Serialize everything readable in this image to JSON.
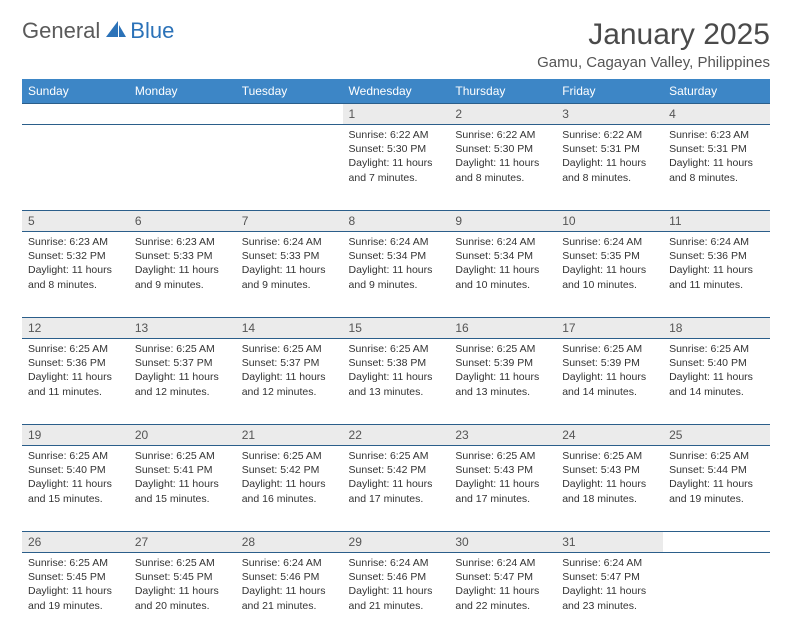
{
  "logo": {
    "part1": "General",
    "part2": "Blue"
  },
  "title": "January 2025",
  "location": "Gamu, Cagayan Valley, Philippines",
  "colors": {
    "header_bg": "#3d86c6",
    "header_fg": "#ffffff",
    "daynum_bg": "#ebebeb",
    "rule": "#2b5e8a",
    "logo_gray": "#5a5a5a",
    "logo_blue": "#2b72b8"
  },
  "day_headers": [
    "Sunday",
    "Monday",
    "Tuesday",
    "Wednesday",
    "Thursday",
    "Friday",
    "Saturday"
  ],
  "weeks": [
    [
      {
        "n": "",
        "sr": "",
        "ss": "",
        "dl": ""
      },
      {
        "n": "",
        "sr": "",
        "ss": "",
        "dl": ""
      },
      {
        "n": "",
        "sr": "",
        "ss": "",
        "dl": ""
      },
      {
        "n": "1",
        "sr": "6:22 AM",
        "ss": "5:30 PM",
        "dl": "11 hours and 7 minutes."
      },
      {
        "n": "2",
        "sr": "6:22 AM",
        "ss": "5:30 PM",
        "dl": "11 hours and 8 minutes."
      },
      {
        "n": "3",
        "sr": "6:22 AM",
        "ss": "5:31 PM",
        "dl": "11 hours and 8 minutes."
      },
      {
        "n": "4",
        "sr": "6:23 AM",
        "ss": "5:31 PM",
        "dl": "11 hours and 8 minutes."
      }
    ],
    [
      {
        "n": "5",
        "sr": "6:23 AM",
        "ss": "5:32 PM",
        "dl": "11 hours and 8 minutes."
      },
      {
        "n": "6",
        "sr": "6:23 AM",
        "ss": "5:33 PM",
        "dl": "11 hours and 9 minutes."
      },
      {
        "n": "7",
        "sr": "6:24 AM",
        "ss": "5:33 PM",
        "dl": "11 hours and 9 minutes."
      },
      {
        "n": "8",
        "sr": "6:24 AM",
        "ss": "5:34 PM",
        "dl": "11 hours and 9 minutes."
      },
      {
        "n": "9",
        "sr": "6:24 AM",
        "ss": "5:34 PM",
        "dl": "11 hours and 10 minutes."
      },
      {
        "n": "10",
        "sr": "6:24 AM",
        "ss": "5:35 PM",
        "dl": "11 hours and 10 minutes."
      },
      {
        "n": "11",
        "sr": "6:24 AM",
        "ss": "5:36 PM",
        "dl": "11 hours and 11 minutes."
      }
    ],
    [
      {
        "n": "12",
        "sr": "6:25 AM",
        "ss": "5:36 PM",
        "dl": "11 hours and 11 minutes."
      },
      {
        "n": "13",
        "sr": "6:25 AM",
        "ss": "5:37 PM",
        "dl": "11 hours and 12 minutes."
      },
      {
        "n": "14",
        "sr": "6:25 AM",
        "ss": "5:37 PM",
        "dl": "11 hours and 12 minutes."
      },
      {
        "n": "15",
        "sr": "6:25 AM",
        "ss": "5:38 PM",
        "dl": "11 hours and 13 minutes."
      },
      {
        "n": "16",
        "sr": "6:25 AM",
        "ss": "5:39 PM",
        "dl": "11 hours and 13 minutes."
      },
      {
        "n": "17",
        "sr": "6:25 AM",
        "ss": "5:39 PM",
        "dl": "11 hours and 14 minutes."
      },
      {
        "n": "18",
        "sr": "6:25 AM",
        "ss": "5:40 PM",
        "dl": "11 hours and 14 minutes."
      }
    ],
    [
      {
        "n": "19",
        "sr": "6:25 AM",
        "ss": "5:40 PM",
        "dl": "11 hours and 15 minutes."
      },
      {
        "n": "20",
        "sr": "6:25 AM",
        "ss": "5:41 PM",
        "dl": "11 hours and 15 minutes."
      },
      {
        "n": "21",
        "sr": "6:25 AM",
        "ss": "5:42 PM",
        "dl": "11 hours and 16 minutes."
      },
      {
        "n": "22",
        "sr": "6:25 AM",
        "ss": "5:42 PM",
        "dl": "11 hours and 17 minutes."
      },
      {
        "n": "23",
        "sr": "6:25 AM",
        "ss": "5:43 PM",
        "dl": "11 hours and 17 minutes."
      },
      {
        "n": "24",
        "sr": "6:25 AM",
        "ss": "5:43 PM",
        "dl": "11 hours and 18 minutes."
      },
      {
        "n": "25",
        "sr": "6:25 AM",
        "ss": "5:44 PM",
        "dl": "11 hours and 19 minutes."
      }
    ],
    [
      {
        "n": "26",
        "sr": "6:25 AM",
        "ss": "5:45 PM",
        "dl": "11 hours and 19 minutes."
      },
      {
        "n": "27",
        "sr": "6:25 AM",
        "ss": "5:45 PM",
        "dl": "11 hours and 20 minutes."
      },
      {
        "n": "28",
        "sr": "6:24 AM",
        "ss": "5:46 PM",
        "dl": "11 hours and 21 minutes."
      },
      {
        "n": "29",
        "sr": "6:24 AM",
        "ss": "5:46 PM",
        "dl": "11 hours and 21 minutes."
      },
      {
        "n": "30",
        "sr": "6:24 AM",
        "ss": "5:47 PM",
        "dl": "11 hours and 22 minutes."
      },
      {
        "n": "31",
        "sr": "6:24 AM",
        "ss": "5:47 PM",
        "dl": "11 hours and 23 minutes."
      },
      {
        "n": "",
        "sr": "",
        "ss": "",
        "dl": ""
      }
    ]
  ],
  "labels": {
    "sunrise": "Sunrise:",
    "sunset": "Sunset:",
    "daylight": "Daylight:"
  }
}
